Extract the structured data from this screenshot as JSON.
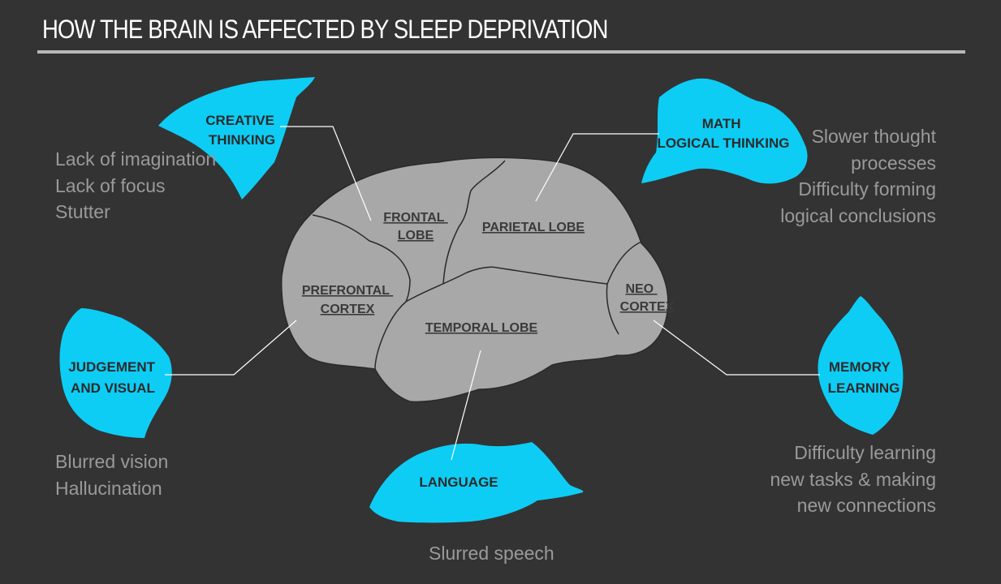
{
  "title": "HOW THE BRAIN IS AFFECTED BY SLEEP DEPRIVATION",
  "colors": {
    "background": "#333333",
    "brain": "#a8a8a8",
    "region": "#0dcdf5",
    "lobe_text": "#3a3a3a",
    "function_text": "#2b2b2b",
    "description_text": "#9a9a9a",
    "connector": "#ffffff"
  },
  "lobes": {
    "frontal": [
      "FRONTAL",
      "LOBE"
    ],
    "parietal": [
      "PARIETAL LOBE"
    ],
    "prefrontal": [
      "PREFRONTAL",
      "CORTEX"
    ],
    "temporal": [
      "TEMPORAL LOBE"
    ],
    "neo": [
      "NEO",
      "CORTEX"
    ]
  },
  "functions": {
    "creative": [
      "CREATIVE",
      "THINKING"
    ],
    "math": [
      "MATH",
      "LOGICAL THINKING"
    ],
    "judgement": [
      "JUDGEMENT",
      "AND VISUAL"
    ],
    "memory": [
      "MEMORY",
      "LEARNING"
    ],
    "language": [
      "LANGUAGE"
    ]
  },
  "effects": {
    "creative": [
      "Lack of imagination",
      "Lack of focus",
      "Stutter"
    ],
    "math": [
      "Slower thought",
      "processes",
      "Difficulty forming",
      "logical conclusions"
    ],
    "judgement": [
      "Blurred vision",
      "Hallucination"
    ],
    "memory": [
      "Difficulty learning",
      "new tasks & making",
      "new connections"
    ],
    "language": [
      "Slurred speech"
    ]
  }
}
